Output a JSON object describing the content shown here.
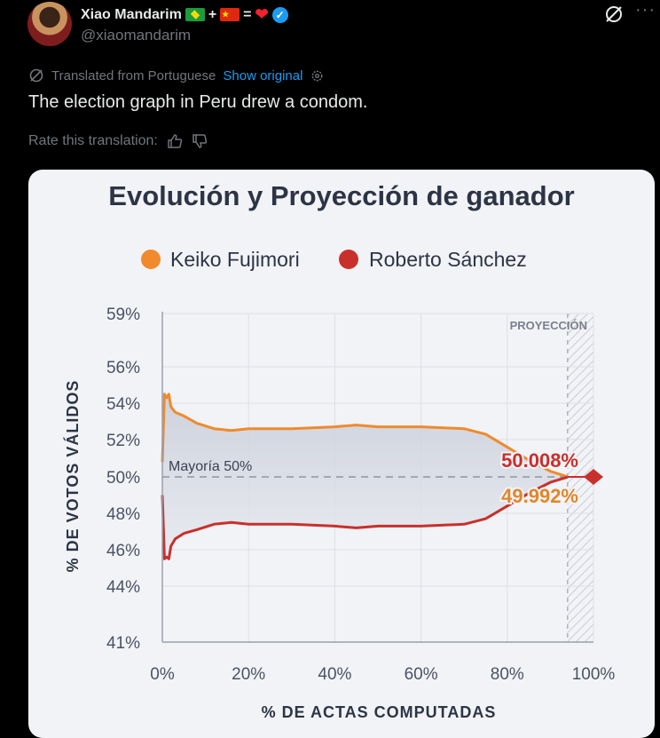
{
  "tweet": {
    "display_name": "Xiao Mandarim",
    "name_symbols": [
      "+",
      "="
    ],
    "handle": "@xiaomandarim",
    "translated_from": "Translated from Portuguese",
    "show_original": "Show original",
    "text": "The election graph in Peru drew a condom.",
    "rate_label": "Rate this translation:"
  },
  "icons": [
    "grok-icon",
    "more-icon",
    "translate-icon",
    "gear-icon",
    "thumbs-up-icon",
    "thumbs-down-icon",
    "verified-icon"
  ],
  "chart_data": {
    "type": "line",
    "title": "Evolución y Proyección de ganador",
    "xlabel": "% DE ACTAS COMPUTADAS",
    "ylabel": "% DE VOTOS VÁLIDOS",
    "x_ticks": [
      "0%",
      "20%",
      "40%",
      "60%",
      "80%",
      "100%"
    ],
    "y_ticks": [
      "59%",
      "56%",
      "54%",
      "52%",
      "50%",
      "48%",
      "46%",
      "44%",
      "41%"
    ],
    "y_tick_values": [
      59,
      56,
      54,
      52,
      50,
      48,
      46,
      44,
      41
    ],
    "legend": "top",
    "majority_label": "Mayoría 50%",
    "projection_label": "PROYECCIÓN",
    "end_labels": {
      "keiko": "50.008%",
      "roberto": "49.992%"
    },
    "series": [
      {
        "name": "Keiko Fujimori",
        "color": "#f08a2c",
        "x": [
          0,
          0.5,
          1,
          1.5,
          2,
          3,
          5,
          8,
          12,
          16,
          20,
          30,
          40,
          45,
          50,
          60,
          70,
          75,
          80,
          85,
          90,
          94
        ],
        "y": [
          50.8,
          54.5,
          54.3,
          54.5,
          53.8,
          53.5,
          53.3,
          52.9,
          52.6,
          52.5,
          52.6,
          52.6,
          52.7,
          52.8,
          52.7,
          52.7,
          52.6,
          52.3,
          51.6,
          50.9,
          50.3,
          50.008
        ]
      },
      {
        "name": "Roberto Sánchez",
        "color": "#c8302c",
        "x": [
          0,
          0.5,
          1,
          1.5,
          2,
          3,
          5,
          8,
          12,
          16,
          20,
          30,
          40,
          45,
          50,
          60,
          70,
          75,
          80,
          85,
          90,
          94
        ],
        "y": [
          49.0,
          45.5,
          45.6,
          45.5,
          46.2,
          46.6,
          46.9,
          47.1,
          47.4,
          47.5,
          47.4,
          47.4,
          47.3,
          47.2,
          47.3,
          47.3,
          47.4,
          47.7,
          48.4,
          49.1,
          49.7,
          49.992
        ]
      }
    ],
    "ylim": [
      41,
      59
    ],
    "xlim": [
      0,
      100
    ],
    "projection_start": 94
  }
}
